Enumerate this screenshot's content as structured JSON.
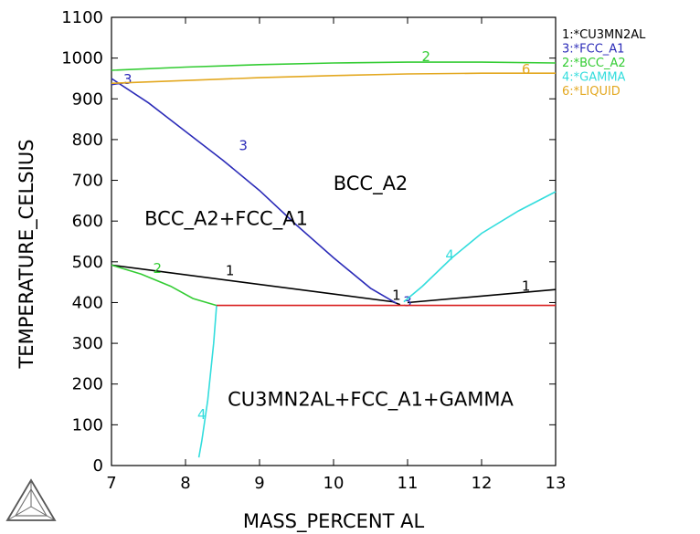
{
  "chart_data": {
    "type": "line",
    "xlabel": "MASS_PERCENT AL",
    "ylabel": "TEMPERATURE_CELSIUS",
    "xlim": [
      7,
      13
    ],
    "ylim": [
      0,
      1100
    ],
    "x_ticks": [
      "7",
      "8",
      "9",
      "10",
      "11",
      "12",
      "13"
    ],
    "y_ticks": [
      "0",
      "100",
      "200",
      "300",
      "400",
      "500",
      "600",
      "700",
      "800",
      "900",
      "1000",
      "1100"
    ],
    "grid": false,
    "legend_position": "top-right",
    "legend": [
      {
        "label": "1:*CU3MN2AL",
        "color": "#000000"
      },
      {
        "label": "3:*FCC_A1",
        "color": "#2b2bb8"
      },
      {
        "label": "2:*BCC_A2",
        "color": "#33cc33"
      },
      {
        "label": "4:*GAMMA",
        "color": "#33dddd"
      },
      {
        "label": "6:*LIQUID",
        "color": "#e3a820"
      }
    ],
    "series": [
      {
        "name": "1:*CU3MN2AL",
        "color": "#000000",
        "points": [
          [
            7.0,
            492
          ],
          [
            10.8,
            402
          ],
          [
            10.9,
            395
          ]
        ],
        "labels": [
          {
            "text": "1",
            "x": 8.6,
            "y": 478
          },
          {
            "text": "1",
            "x": 10.85,
            "y": 418
          }
        ]
      },
      {
        "name": "1:*CU3MN2AL",
        "color": "#000000",
        "points": [
          [
            11.0,
            400
          ],
          [
            13.0,
            432
          ]
        ],
        "labels": [
          {
            "text": "1",
            "x": 12.6,
            "y": 440
          }
        ]
      },
      {
        "name": "3:*FCC_A1",
        "color": "#2b2bb8",
        "points": [
          [
            7.0,
            950
          ],
          [
            7.5,
            890
          ],
          [
            8.0,
            820
          ],
          [
            8.5,
            750
          ],
          [
            9.0,
            675
          ],
          [
            9.5,
            590
          ],
          [
            10.0,
            510
          ],
          [
            10.5,
            435
          ],
          [
            10.85,
            398
          ]
        ],
        "labels": [
          {
            "text": "3",
            "x": 7.22,
            "y": 948
          },
          {
            "text": "3",
            "x": 8.78,
            "y": 785
          },
          {
            "text": "3",
            "x": 11.0,
            "y": 402
          }
        ]
      },
      {
        "name": "3:*FCC_A1",
        "color": "#2b2bb8",
        "points": [
          [
            7.0,
            935
          ],
          [
            7.2,
            940
          ]
        ],
        "labels": []
      },
      {
        "name": "2:*BCC_A2",
        "color": "#33cc33",
        "points": [
          [
            7.0,
            970
          ],
          [
            8.0,
            978
          ],
          [
            9.0,
            984
          ],
          [
            10.0,
            988
          ],
          [
            11.0,
            990
          ],
          [
            12.0,
            990
          ],
          [
            13.0,
            988
          ]
        ],
        "labels": [
          {
            "text": "2",
            "x": 11.25,
            "y": 1004
          }
        ]
      },
      {
        "name": "2:*BCC_A2",
        "color": "#33cc33",
        "points": [
          [
            7.0,
            492
          ],
          [
            7.4,
            470
          ],
          [
            7.8,
            440
          ],
          [
            8.1,
            410
          ],
          [
            8.42,
            393
          ]
        ],
        "labels": [
          {
            "text": "2",
            "x": 7.62,
            "y": 484
          }
        ]
      },
      {
        "name": "4:*GAMMA",
        "color": "#33dddd",
        "points": [
          [
            10.95,
            402
          ],
          [
            11.2,
            440
          ],
          [
            11.6,
            510
          ],
          [
            12.0,
            570
          ],
          [
            12.5,
            625
          ],
          [
            13.0,
            672
          ]
        ],
        "labels": [
          {
            "text": "4",
            "x": 11.57,
            "y": 516
          }
        ]
      },
      {
        "name": "4:*GAMMA",
        "color": "#33dddd",
        "points": [
          [
            8.42,
            393
          ],
          [
            8.38,
            300
          ],
          [
            8.3,
            160
          ],
          [
            8.22,
            60
          ],
          [
            8.18,
            20
          ]
        ],
        "labels": [
          {
            "text": "4",
            "x": 8.22,
            "y": 125
          }
        ]
      },
      {
        "name": "6:*LIQUID",
        "color": "#e3a820",
        "points": [
          [
            7.0,
            938
          ],
          [
            8.0,
            945
          ],
          [
            9.0,
            952
          ],
          [
            10.0,
            957
          ],
          [
            11.0,
            961
          ],
          [
            12.0,
            963
          ],
          [
            13.0,
            963
          ]
        ],
        "labels": [
          {
            "text": "6",
            "x": 12.6,
            "y": 972
          }
        ]
      },
      {
        "name": "",
        "color": "#d92020",
        "points": [
          [
            8.42,
            393
          ],
          [
            13.0,
            393
          ]
        ],
        "labels": []
      }
    ],
    "annotations": [
      {
        "text": "BCC_A2",
        "x": 10.5,
        "y": 695
      },
      {
        "text": "BCC_A2+FCC_A1",
        "x": 8.55,
        "y": 608
      },
      {
        "text": "CU3MN2AL+FCC_A1+GAMMA",
        "x": 10.5,
        "y": 165
      }
    ]
  }
}
